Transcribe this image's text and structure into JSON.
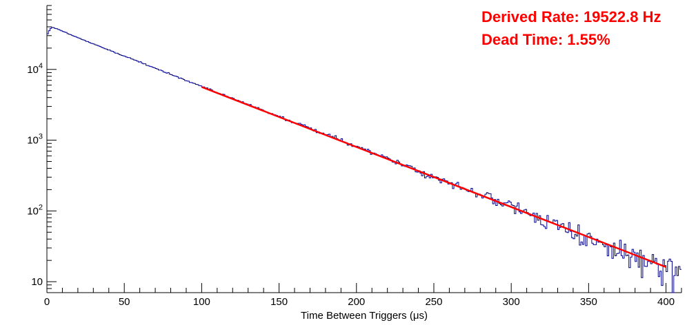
{
  "annotations": {
    "derived_rate": "Derived Rate: 19522.8 Hz",
    "dead_time": "Dead Time: 1.55%",
    "color": "#ff0000"
  },
  "chart_data": {
    "type": "histogram",
    "title": "",
    "xlabel": "Time Between Triggers (μs)",
    "ylabel": "",
    "x_scale": "linear",
    "y_scale": "log",
    "xlim": [
      0,
      410
    ],
    "ylim": [
      7,
      80000
    ],
    "grid": false,
    "x_major_ticks": [
      0,
      50,
      100,
      150,
      200,
      250,
      300,
      350,
      400
    ],
    "x_minor_step": 10,
    "y_major_ticks": [
      {
        "value": 10,
        "label_base": "10",
        "label_exp": ""
      },
      {
        "value": 100,
        "label_base": "10",
        "label_exp": "2"
      },
      {
        "value": 1000,
        "label_base": "10",
        "label_exp": "3"
      },
      {
        "value": 10000,
        "label_base": "10",
        "label_exp": "4"
      }
    ],
    "histogram": {
      "color": "#00008b",
      "bin_width": 1,
      "anchors_x": [
        0,
        1,
        3,
        5,
        8,
        12,
        20,
        30,
        40,
        50,
        60,
        70,
        80,
        90,
        100,
        150,
        200,
        250,
        300,
        350,
        400,
        410
      ],
      "anchors_y": [
        30000,
        34000,
        39500,
        38500,
        36500,
        33500,
        28000,
        23000,
        18800,
        15400,
        12700,
        10400,
        8550,
        7000,
        5750,
        2165,
        815,
        307,
        116,
        43.6,
        16.4,
        13.5
      ],
      "decay_constant_us": 51.2,
      "noise_seed": 1337,
      "noise_scale": 1.0
    },
    "fit": {
      "type": "exponential",
      "color": "#ff0000",
      "x_start": 100,
      "y_start": 5650,
      "x_end": 400,
      "y_end": 16.1
    },
    "derived_rate_hz": 19522.8,
    "dead_time_percent": 1.55
  }
}
